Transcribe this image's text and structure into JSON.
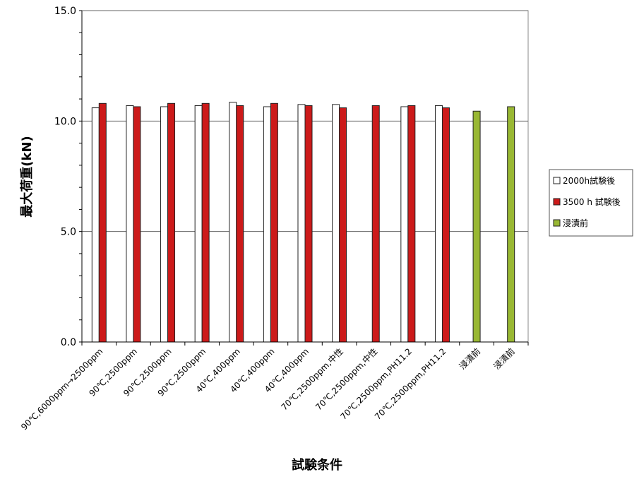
{
  "chart_data": {
    "type": "bar",
    "xlabel": "試験条件",
    "ylabel": "最大荷重(kN)",
    "ylim": [
      0,
      15
    ],
    "yticks": [
      "0.0",
      "5.0",
      "10.0",
      "15.0"
    ],
    "ytick_values": [
      0,
      5,
      10,
      15
    ],
    "grid": true,
    "legend_position": "right",
    "categories": [
      "90℃,6000ppm→2500ppm",
      "90℃,2500ppm",
      "90℃,2500ppm",
      "90℃,2500ppm",
      "40℃,400ppm",
      "40℃,400ppm",
      "40℃,400ppm",
      "70℃,2500ppm,中性",
      "70℃,2500ppm,中性",
      "70℃,2500ppm,PH11.2",
      "70℃,2500ppm,PH11.2",
      "浸漬前",
      "浸漬前"
    ],
    "series": [
      {
        "name": "2000h試験後",
        "color": "#ffffff",
        "values": [
          10.6,
          10.7,
          10.65,
          10.7,
          10.85,
          10.65,
          10.75,
          10.75,
          null,
          10.65,
          10.7,
          null,
          null
        ]
      },
      {
        "name": "3500 h 試験後",
        "color": "#cc1a1a",
        "values": [
          10.8,
          10.65,
          10.8,
          10.8,
          10.7,
          10.8,
          10.7,
          10.6,
          10.7,
          10.7,
          10.6,
          null,
          null
        ]
      },
      {
        "name": "浸漬前",
        "color": "#99b833",
        "values": [
          null,
          null,
          null,
          null,
          null,
          null,
          null,
          null,
          null,
          null,
          null,
          10.45,
          10.65
        ]
      }
    ]
  }
}
